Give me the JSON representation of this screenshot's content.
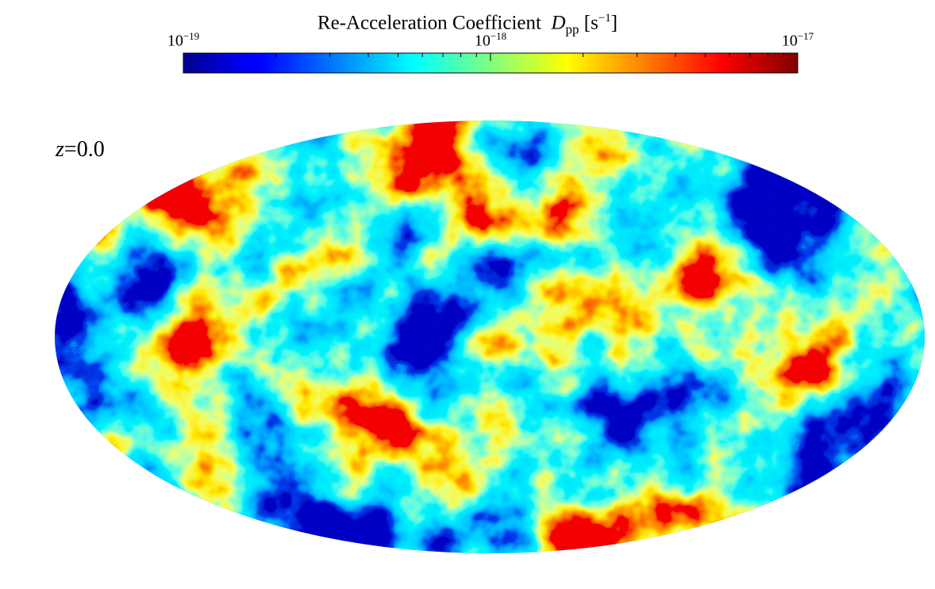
{
  "chart_data": {
    "type": "heatmap",
    "projection": "mollweide",
    "colormap": "jet",
    "colorbar": {
      "orientation": "horizontal",
      "position": "top",
      "label_text": "Re-Acceleration Coefficient",
      "label_symbol": "D",
      "label_subscript": "pp",
      "label_unit": "[s",
      "label_unit_exponent": "−1",
      "label_unit_close": "]",
      "scale": "log",
      "range": [
        1e-19,
        1e-17
      ],
      "tick_base": "10",
      "ticks": [
        {
          "value": 1e-19,
          "exponent": "−19"
        },
        {
          "value": 1e-18,
          "exponent": "−18"
        },
        {
          "value": 1e-17,
          "exponent": "−17"
        }
      ]
    },
    "annotation": {
      "symbol": "z",
      "eq": "=",
      "value": "0.0"
    }
  }
}
